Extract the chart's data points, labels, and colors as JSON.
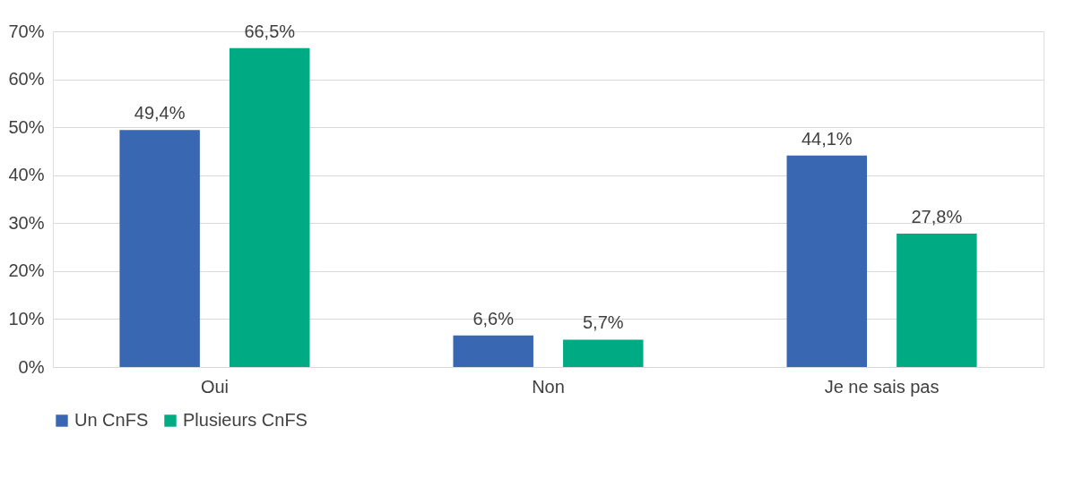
{
  "chart_data": {
    "type": "bar",
    "categories": [
      "Oui",
      "Non",
      "Je ne sais pas"
    ],
    "series": [
      {
        "name": "Un CnFS",
        "color": "#3a67b1",
        "values": [
          49.4,
          6.6,
          44.1
        ],
        "value_labels": [
          "49,4%",
          "6,6%",
          "44,1%"
        ]
      },
      {
        "name": "Plusieurs CnFS",
        "color": "#00ab84",
        "values": [
          66.5,
          5.7,
          27.8
        ],
        "value_labels": [
          "66,5%",
          "5,7%",
          "27,8%"
        ]
      }
    ],
    "ylim": [
      0,
      70
    ],
    "yticks": [
      {
        "value": 0,
        "label": "0%"
      },
      {
        "value": 10,
        "label": "10%"
      },
      {
        "value": 20,
        "label": "20%"
      },
      {
        "value": 30,
        "label": "30%"
      },
      {
        "value": 40,
        "label": "40%"
      },
      {
        "value": 50,
        "label": "50%"
      },
      {
        "value": 60,
        "label": "60%"
      },
      {
        "value": 70,
        "label": "70%"
      }
    ],
    "grid": "y",
    "legend": "bottom"
  }
}
